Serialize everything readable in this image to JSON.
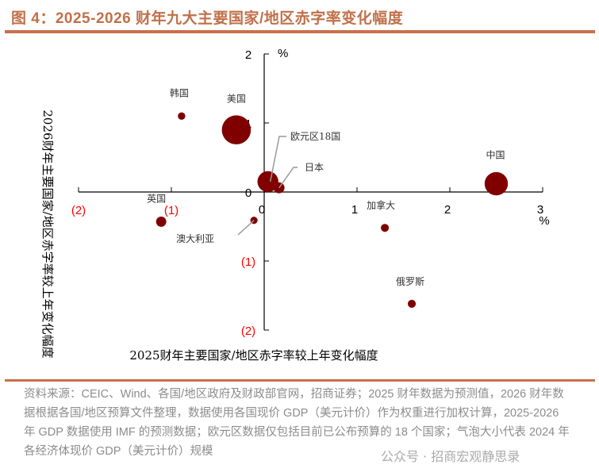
{
  "title": "图 4：2025-2026 财年九大主要国家/地区赤字率变化幅度",
  "source": "资料来源：CEIC、Wind、各国/地区政府及财政部官网，招商证券；2025 财年数据为预测值，2026 财年数据根据各国/地区预算文件整理，数据使用各国现价 GDP（美元计价）作为权重进行加权计算，2025-2026 年 GDP 数据使用 IMF 的预测数据；欧元区数据仅包括目前已公布预算的 18 个国家；气泡大小代表 2024 年各经济体现价 GDP（美元计价）规模",
  "watermark": "公众号 · 招商宏观静思录",
  "chart_data": {
    "type": "scatter",
    "xlabel": "2025财年主要国家/地区赤字率较上年变化幅度",
    "ylabel": "2026财年主要国家/地区赤字率较上年变化幅度",
    "x_unit": "%",
    "y_unit": "%",
    "xlim": [
      -2,
      3
    ],
    "ylim": [
      -2,
      2
    ],
    "x_ticks": [
      "(2)",
      "(1)",
      "0",
      "1",
      "2",
      "3"
    ],
    "y_ticks": [
      "(2)",
      "(1)",
      "0",
      "1",
      "2"
    ],
    "negative_tick_color": "#ff0000",
    "bubble_color": "#800000",
    "grid": false,
    "points": [
      {
        "name": "韩国",
        "x": -0.89,
        "y": 1.1,
        "size": 1.9
      },
      {
        "name": "美国",
        "x": -0.3,
        "y": 0.9,
        "size": 29
      },
      {
        "name": "欧元区18国",
        "x": 0.04,
        "y": 0.15,
        "size": 15
      },
      {
        "name": "日本",
        "x": 0.16,
        "y": 0.06,
        "size": 4.1
      },
      {
        "name": "中国",
        "x": 2.5,
        "y": 0.12,
        "size": 18.7
      },
      {
        "name": "英国",
        "x": -1.11,
        "y": -0.43,
        "size": 3.6
      },
      {
        "name": "澳大利亚",
        "x": -0.11,
        "y": -0.41,
        "size": 1.8
      },
      {
        "name": "加拿大",
        "x": 1.3,
        "y": -0.52,
        "size": 2.2
      },
      {
        "name": "俄罗斯",
        "x": 1.59,
        "y": -1.62,
        "size": 2.2
      }
    ]
  }
}
